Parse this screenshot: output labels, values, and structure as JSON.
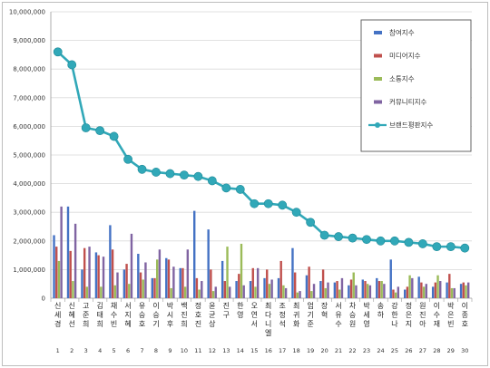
{
  "chart_data": {
    "type": "bar",
    "title": "",
    "xlabel": "",
    "ylabel": "",
    "ylim": [
      0,
      10000000
    ],
    "y_ticks": [
      "0",
      "1,000,000",
      "2,000,000",
      "3,000,000",
      "4,000,000",
      "5,000,000",
      "6,000,000",
      "7,000,000",
      "8,000,000",
      "9,000,000",
      "10,000,000"
    ],
    "grid": true,
    "legend_position": "top-right",
    "categories": [
      "신세경",
      "신혜선",
      "고준희",
      "김태희",
      "채수빈",
      "서지혜",
      "유승호",
      "이승기",
      "박시후",
      "백진희",
      "정호진",
      "윤균상",
      "진구",
      "한영",
      "오연서",
      "최다니엘",
      "조정석",
      "최귀화",
      "엄기준",
      "장혁",
      "서유수",
      "차승원",
      "박세영",
      "송하",
      "강한나",
      "정은지",
      "원진아",
      "이수재",
      "박은빈",
      "이종호"
    ],
    "ranks": [
      "1",
      "2",
      "3",
      "4",
      "5",
      "6",
      "7",
      "8",
      "9",
      "10",
      "11",
      "12",
      "13",
      "14",
      "15",
      "16",
      "17",
      "18",
      "19",
      "20",
      "21",
      "22",
      "23",
      "24",
      "25",
      "26",
      "27",
      "28",
      "29",
      "30"
    ],
    "series": [
      {
        "name": "참여지수",
        "color": "#4472c4",
        "kind": "bar",
        "values": [
          2200000,
          3200000,
          1000000,
          1600000,
          2550000,
          1000000,
          1550000,
          700000,
          1400000,
          1050000,
          3050000,
          2400000,
          1300000,
          600000,
          600000,
          700000,
          700000,
          1750000,
          800000,
          600000,
          550000,
          450000,
          650000,
          700000,
          1350000,
          300000,
          750000,
          400000,
          550000,
          500000
        ]
      },
      {
        "name": "미디어지수",
        "color": "#c0504d",
        "kind": "bar",
        "values": [
          1800000,
          1650000,
          1750000,
          1500000,
          1700000,
          1200000,
          900000,
          700000,
          1350000,
          1050000,
          700000,
          1000000,
          600000,
          850000,
          1050000,
          1000000,
          1300000,
          900000,
          1100000,
          1000000,
          600000,
          650000,
          600000,
          600000,
          300000,
          400000,
          550000,
          550000,
          850000,
          550000
        ]
      },
      {
        "name": "소통지수",
        "color": "#9bbb59",
        "kind": "bar",
        "values": [
          1300000,
          600000,
          400000,
          400000,
          450000,
          500000,
          650000,
          1350000,
          350000,
          400000,
          300000,
          250000,
          1800000,
          1900000,
          400000,
          500000,
          450000,
          200000,
          250000,
          350000,
          300000,
          900000,
          500000,
          600000,
          200000,
          800000,
          400000,
          800000,
          350000,
          450000
        ]
      },
      {
        "name": "커뮤니티지수",
        "color": "#8064a2",
        "kind": "bar",
        "values": [
          3200000,
          2600000,
          1800000,
          1450000,
          900000,
          2250000,
          1250000,
          1700000,
          1100000,
          1700000,
          600000,
          400000,
          400000,
          450000,
          1050000,
          650000,
          350000,
          250000,
          500000,
          550000,
          700000,
          450000,
          450000,
          500000,
          400000,
          700000,
          500000,
          600000,
          350000,
          550000
        ]
      },
      {
        "name": "브랜드평판지수",
        "color": "#31a8b8",
        "kind": "line",
        "values": [
          8600000,
          8150000,
          5950000,
          5850000,
          5650000,
          4850000,
          4500000,
          4400000,
          4350000,
          4300000,
          4250000,
          4100000,
          3850000,
          3800000,
          3300000,
          3300000,
          3250000,
          3000000,
          2650000,
          2200000,
          2150000,
          2100000,
          2050000,
          2000000,
          2000000,
          1950000,
          1900000,
          1800000,
          1800000,
          1750000
        ]
      }
    ]
  }
}
